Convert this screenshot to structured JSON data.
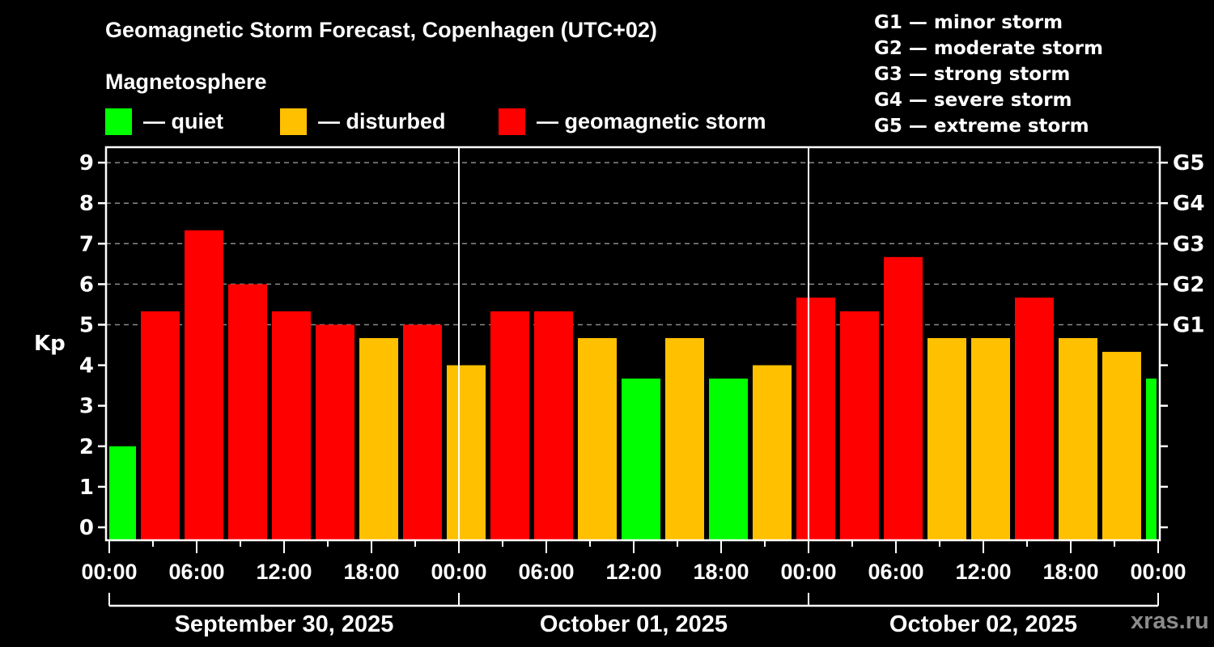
{
  "title": "Geomagnetic Storm Forecast, Copenhagen (UTC+02)",
  "subtitle": "Magnetosphere",
  "legend": [
    {
      "label": "— quiet",
      "color": "#00ff00"
    },
    {
      "label": "— disturbed",
      "color": "#ffc000"
    },
    {
      "label": "— geomagnetic storm",
      "color": "#ff0000"
    }
  ],
  "g_scale": [
    "G1 — minor storm",
    "G2 — moderate storm",
    "G3 — strong storm",
    "G4 — severe storm",
    "G5 — extreme storm"
  ],
  "watermark": "xras.ru",
  "chart_data": {
    "type": "bar",
    "title": "Geomagnetic Storm Forecast, Copenhagen (UTC+02)",
    "ylabel": "Kp",
    "ylim": [
      0,
      9
    ],
    "yticks": [
      "0",
      "1",
      "2",
      "3",
      "4",
      "5",
      "6",
      "7",
      "8",
      "9"
    ],
    "right_ticks": [
      {
        "kp": 5,
        "label": "G1"
      },
      {
        "kp": 6,
        "label": "G2"
      },
      {
        "kp": 7,
        "label": "G3"
      },
      {
        "kp": 8,
        "label": "G4"
      },
      {
        "kp": 9,
        "label": "G5"
      }
    ],
    "grid": true,
    "xticks": [
      "00:00",
      "06:00",
      "12:00",
      "18:00",
      "00:00",
      "06:00",
      "12:00",
      "18:00",
      "00:00",
      "06:00",
      "12:00",
      "18:00",
      "00:00"
    ],
    "days": [
      "September 30, 2025",
      "October 01, 2025",
      "October 02, 2025"
    ],
    "bar_start_hours": [
      -1,
      2,
      5,
      8,
      11,
      14,
      17,
      20,
      23,
      26,
      29,
      32,
      35,
      38,
      41,
      44,
      47,
      50,
      53,
      56,
      59,
      62,
      65,
      68,
      71
    ],
    "values": [
      2.0,
      5.33,
      7.33,
      6.0,
      5.33,
      5.0,
      4.67,
      5.0,
      4.0,
      5.33,
      5.33,
      4.67,
      3.67,
      4.67,
      3.67,
      4.0,
      5.67,
      5.33,
      6.67,
      4.67,
      4.67,
      5.67,
      4.67,
      4.33,
      3.67
    ],
    "levels": [
      "quiet",
      "storm",
      "storm",
      "storm",
      "storm",
      "storm",
      "disturbed",
      "storm",
      "disturbed",
      "storm",
      "storm",
      "disturbed",
      "quiet",
      "disturbed",
      "quiet",
      "disturbed",
      "storm",
      "storm",
      "storm",
      "disturbed",
      "disturbed",
      "storm",
      "disturbed",
      "disturbed",
      "quiet"
    ],
    "level_colors": {
      "quiet": "#00ff00",
      "disturbed": "#ffc000",
      "storm": "#ff0000"
    }
  }
}
